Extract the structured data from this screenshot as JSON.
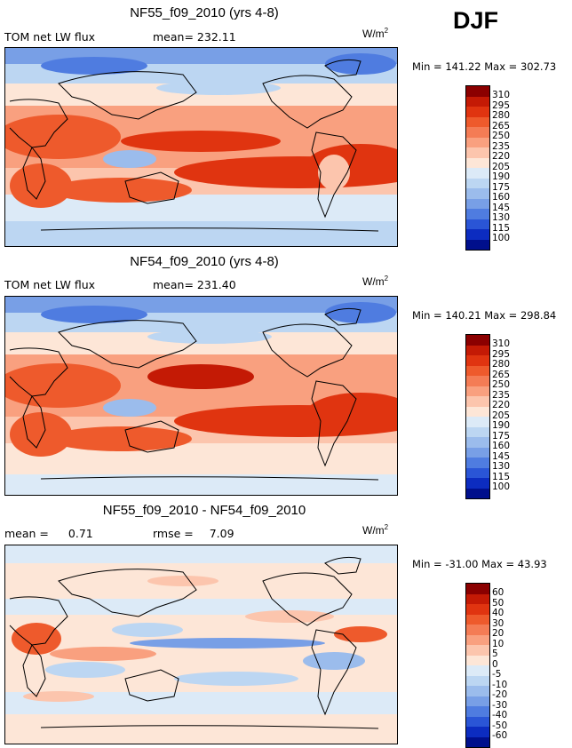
{
  "season": "DJF",
  "units_main": "W/m",
  "units_exp": "2",
  "panels": [
    {
      "title": "NF55_f09_2010 (yrs 4-8)",
      "field_label": "TOM net LW flux",
      "stat_label": "mean=",
      "stat_value": "232.11",
      "minmax": "Min = 141.22 Max = 302.73",
      "colorbar_labels": [
        "310",
        "295",
        "280",
        "265",
        "250",
        "235",
        "220",
        "205",
        "190",
        "175",
        "160",
        "145",
        "130",
        "115",
        "100"
      ]
    },
    {
      "title": "NF54_f09_2010 (yrs 4-8)",
      "field_label": "TOM net LW flux",
      "stat_label": "mean=",
      "stat_value": "231.40",
      "minmax": "Min = 140.21 Max = 298.84",
      "colorbar_labels": [
        "310",
        "295",
        "280",
        "265",
        "250",
        "235",
        "220",
        "205",
        "190",
        "175",
        "160",
        "145",
        "130",
        "115",
        "100"
      ]
    },
    {
      "title": "NF55_f09_2010 - NF54_f09_2010",
      "field_label": "mean =",
      "field_value": "0.71",
      "stat_label": "rmse =",
      "stat_value": "7.09",
      "minmax": "Min = -31.00 Max =  43.93",
      "colorbar_labels": [
        "60",
        "50",
        "40",
        "30",
        "20",
        "10",
        "5",
        "0",
        "-5",
        "-10",
        "-20",
        "-30",
        "-40",
        "-50",
        "-60"
      ]
    }
  ],
  "colors": {
    "abs_scale": [
      "#8b0000",
      "#c41a05",
      "#e03410",
      "#ee5a2c",
      "#f47c55",
      "#f9a07f",
      "#fcc5ad",
      "#fde6d7",
      "#dceaf7",
      "#bcd6f2",
      "#9bbcec",
      "#789fe6",
      "#4f7ce0",
      "#2a55d6",
      "#0c2cc0",
      "#000f8c"
    ],
    "diff_scale": [
      "#8b0000",
      "#c41a05",
      "#e03410",
      "#ee5a2c",
      "#f47c55",
      "#f9a07f",
      "#fcc5ad",
      "#fde6d7",
      "#dceaf7",
      "#bcd6f2",
      "#9bbcec",
      "#789fe6",
      "#4f7ce0",
      "#2a55d6",
      "#0c2cc0",
      "#000f8c"
    ]
  }
}
